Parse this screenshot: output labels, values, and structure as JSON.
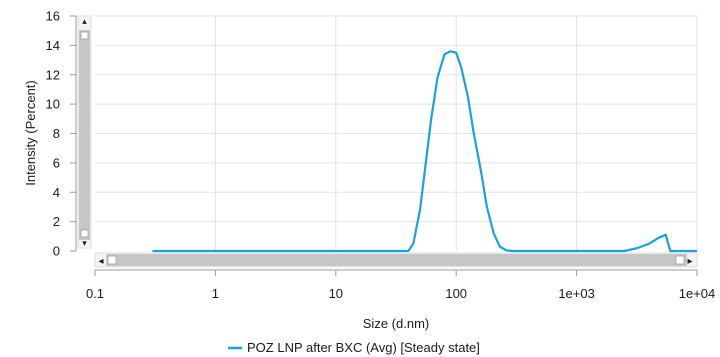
{
  "chart_data": {
    "type": "line",
    "xlabel": "Size (d.nm)",
    "ylabel": "Intensity (Percent)",
    "xscale": "log",
    "xlim": [
      0.1,
      10000
    ],
    "ylim": [
      0,
      16
    ],
    "grid": true,
    "legend_position": "bottom",
    "x_tick_labels": [
      "0.1",
      "1",
      "10",
      "100",
      "1e+03",
      "1e+04"
    ],
    "x_tick_values": [
      0.1,
      1,
      10,
      100,
      1000,
      10000
    ],
    "y_ticks": [
      0,
      2,
      4,
      6,
      8,
      10,
      12,
      14,
      16
    ],
    "series": [
      {
        "name": "POZ LNP after BXC (Avg) [Steady state]",
        "color": "#1ba1e2",
        "x": [
          0.3,
          1,
          10,
          30,
          40,
          44,
          50,
          55,
          62,
          70,
          80,
          90,
          100,
          110,
          125,
          140,
          160,
          180,
          205,
          230,
          260,
          290,
          330,
          400,
          1000,
          2500,
          3200,
          4000,
          4800,
          5500,
          6000,
          10000
        ],
        "y": [
          0,
          0,
          0,
          0,
          0,
          0.5,
          2.8,
          5.5,
          9.0,
          11.8,
          13.4,
          13.6,
          13.5,
          12.5,
          10.5,
          8.0,
          5.5,
          3.0,
          1.2,
          0.3,
          0.05,
          0,
          0,
          0,
          0,
          0,
          0.2,
          0.5,
          0.9,
          1.1,
          0,
          0
        ]
      }
    ]
  },
  "ui": {
    "vscroll_up_arrow": "▴",
    "vscroll_down_arrow": "▾",
    "hscroll_left_arrow": "◂",
    "hscroll_right_arrow": "▸"
  }
}
